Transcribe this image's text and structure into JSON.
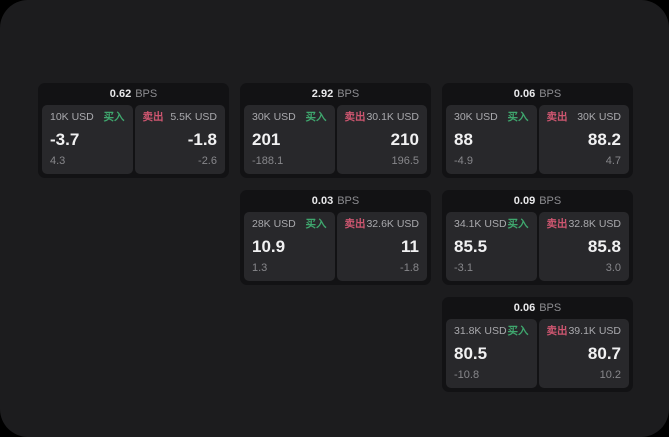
{
  "page": {
    "bps_suffix": "BPS"
  },
  "labels": {
    "buy": "买入",
    "sell": "卖出"
  },
  "colors": {
    "frame_bg": "#1c1c1e",
    "card_bg": "#121214",
    "panel_bg": "#28282b",
    "buy_green": "#3fa76e",
    "sell_red": "#ce5670"
  },
  "cards": [
    {
      "row": 1,
      "col": 1,
      "bps_value": "0.62",
      "buy": {
        "amount": "10K USD",
        "value": "-3.7",
        "sub": "4.3"
      },
      "sell": {
        "amount": "5.5K USD",
        "value": "-1.8",
        "sub": "-2.6"
      }
    },
    {
      "row": 1,
      "col": 2,
      "bps_value": "2.92",
      "buy": {
        "amount": "30K USD",
        "value": "201",
        "sub": "-188.1"
      },
      "sell": {
        "amount": "30.1K USD",
        "value": "210",
        "sub": "196.5"
      }
    },
    {
      "row": 1,
      "col": 3,
      "bps_value": "0.06",
      "buy": {
        "amount": "30K USD",
        "value": "88",
        "sub": "-4.9"
      },
      "sell": {
        "amount": "30K USD",
        "value": "88.2",
        "sub": "4.7"
      }
    },
    {
      "row": 2,
      "col": 2,
      "bps_value": "0.03",
      "buy": {
        "amount": "28K USD",
        "value": "10.9",
        "sub": "1.3"
      },
      "sell": {
        "amount": "32.6K USD",
        "value": "11",
        "sub": "-1.8"
      }
    },
    {
      "row": 2,
      "col": 3,
      "bps_value": "0.09",
      "buy": {
        "amount": "34.1K USD",
        "value": "85.5",
        "sub": "-3.1"
      },
      "sell": {
        "amount": "32.8K USD",
        "value": "85.8",
        "sub": "3.0"
      }
    },
    {
      "row": 3,
      "col": 3,
      "bps_value": "0.06",
      "buy": {
        "amount": "31.8K USD",
        "value": "80.5",
        "sub": "-10.8"
      },
      "sell": {
        "amount": "39.1K USD",
        "value": "80.7",
        "sub": "10.2"
      }
    }
  ]
}
